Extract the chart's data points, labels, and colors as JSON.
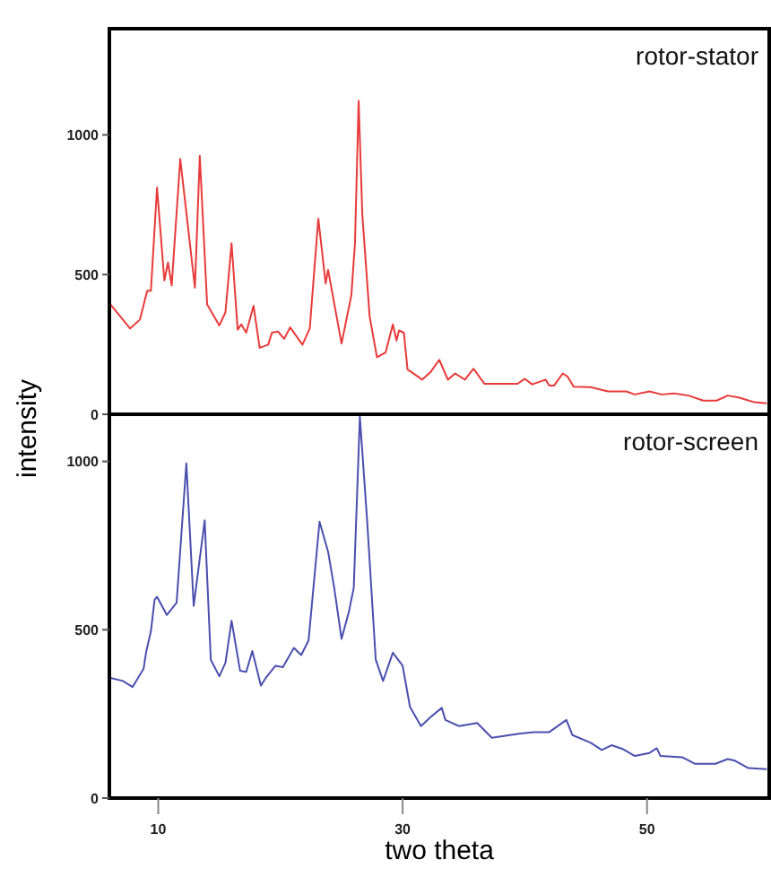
{
  "chart_data": [
    {
      "type": "line",
      "ylabel": "intensity",
      "xlim": [
        6,
        60
      ],
      "ylim": [
        0,
        1380
      ],
      "yticks": [
        0,
        500,
        1000
      ],
      "tick_labels": "y",
      "grid": false,
      "series": [
        {
          "name": "rotor-stator",
          "color": "#e83a3a",
          "x": [
            6.1,
            7.7,
            8.5,
            9.1,
            9.4,
            9.9,
            10.5,
            10.8,
            11.1,
            11.8,
            13.0,
            13.4,
            14.0,
            15.0,
            15.5,
            16.0,
            16.5,
            16.8,
            17.2,
            17.8,
            18.3,
            19.0,
            19.3,
            19.8,
            20.3,
            20.8,
            21.8,
            22.4,
            23.1,
            23.7,
            23.9,
            25.0,
            25.8,
            26.1,
            26.4,
            26.7,
            27.3,
            27.9,
            28.6,
            29.2,
            29.5,
            29.7,
            30.1,
            30.4,
            31.6,
            32.3,
            33.0,
            33.7,
            34.3,
            35.1,
            35.8,
            36.7,
            39.4,
            40.0,
            40.6,
            41.7,
            42.0,
            42.4,
            43.1,
            43.5,
            44.0,
            45.4,
            46.8,
            48.3,
            49.0,
            50.2,
            51.2,
            52.2,
            53.4,
            54.6,
            55.7,
            56.6,
            57.5,
            58.8,
            59.8
          ],
          "values": [
            393,
            307,
            339,
            442,
            442,
            811,
            479,
            543,
            461,
            914,
            453,
            925,
            393,
            318,
            365,
            612,
            303,
            322,
            292,
            388,
            238,
            249,
            292,
            296,
            270,
            311,
            249,
            307,
            700,
            468,
            517,
            253,
            425,
            612,
            1122,
            715,
            350,
            204,
            221,
            322,
            264,
            300,
            292,
            161,
            124,
            152,
            195,
            124,
            146,
            124,
            163,
            109,
            109,
            127,
            107,
            124,
            103,
            103,
            146,
            135,
            99,
            97,
            82,
            82,
            71,
            82,
            71,
            75,
            67,
            49,
            49,
            67,
            60,
            43,
            39
          ]
        }
      ]
    },
    {
      "type": "line",
      "xlabel": "two theta",
      "xlim": [
        6,
        60
      ],
      "xticks": [
        10,
        30,
        50
      ],
      "ylim": [
        0,
        1140
      ],
      "yticks": [
        0,
        500,
        1000
      ],
      "grid": false,
      "series": [
        {
          "name": "rotor-screen",
          "color": "#4a4fae",
          "x": [
            6.1,
            7.1,
            7.9,
            8.8,
            9.0,
            9.4,
            9.7,
            9.9,
            10.7,
            11.5,
            12.3,
            12.9,
            13.8,
            14.3,
            15.0,
            15.5,
            16.0,
            16.7,
            17.2,
            17.7,
            18.4,
            18.8,
            19.6,
            20.2,
            21.1,
            21.7,
            22.3,
            23.2,
            23.9,
            24.4,
            25.0,
            25.6,
            26.0,
            26.5,
            27.1,
            27.8,
            28.4,
            29.2,
            30.0,
            30.6,
            31.5,
            32.3,
            33.2,
            33.5,
            34.6,
            36.1,
            37.3,
            39.5,
            40.7,
            42.0,
            43.4,
            43.9,
            45.4,
            46.3,
            47.1,
            48.0,
            49.0,
            50.2,
            50.8,
            51.1,
            52.9,
            53.9,
            55.6,
            56.6,
            57.2,
            58.3,
            59.8
          ],
          "values": [
            357,
            348,
            330,
            384,
            432,
            496,
            589,
            598,
            544,
            580,
            994,
            571,
            825,
            411,
            362,
            402,
            527,
            378,
            375,
            437,
            334,
            357,
            393,
            389,
            446,
            425,
            468,
            821,
            732,
            625,
            473,
            553,
            625,
            1133,
            821,
            411,
            348,
            432,
            393,
            271,
            214,
            241,
            268,
            232,
            214,
            223,
            179,
            191,
            196,
            196,
            232,
            187,
            164,
            143,
            157,
            146,
            125,
            134,
            148,
            125,
            121,
            102,
            102,
            116,
            111,
            89,
            86
          ]
        }
      ]
    }
  ]
}
